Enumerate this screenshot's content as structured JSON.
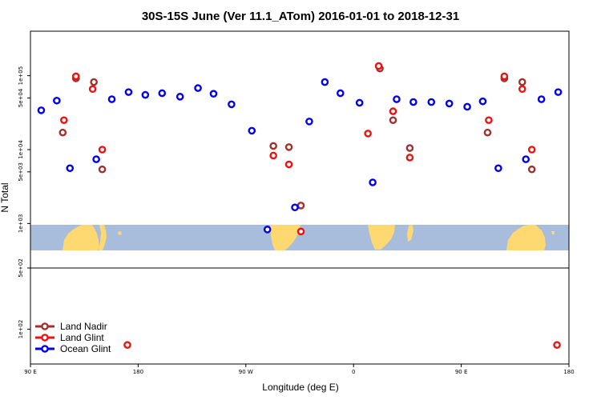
{
  "chart_data": {
    "type": "scatter",
    "title": "30S-15S June (Ver 11.1_ATom)   2016-01-01 to 2018-12-31",
    "xlabel": "Longitude (deg E)",
    "ylabel": "N Total",
    "xlim": [
      90,
      540
    ],
    "xticks": [
      {
        "v": 90,
        "label": "90 E"
      },
      {
        "v": 180,
        "label": "180"
      },
      {
        "v": 270,
        "label": "90 W"
      },
      {
        "v": 360,
        "label": "0"
      },
      {
        "v": 450,
        "label": "90 E"
      },
      {
        "v": 540,
        "label": "180"
      }
    ],
    "upper_panel": {
      "scale": "log",
      "ylim": [
        250,
        400000
      ],
      "yticks": [
        {
          "v": 1000,
          "label": "1e+03"
        },
        {
          "v": 5000,
          "label": "5e+03"
        },
        {
          "v": 10000,
          "label": "1e+04"
        },
        {
          "v": 50000,
          "label": "5e+04"
        },
        {
          "v": 100000,
          "label": "1e+05"
        }
      ]
    },
    "lower_panel": {
      "scale": "log",
      "ylim": [
        40,
        500
      ],
      "yticks": [
        {
          "v": 500,
          "label": "5e+02"
        },
        {
          "v": 100,
          "label": "1e+02"
        }
      ]
    },
    "legend": {
      "position": "bottom-left",
      "entries": [
        {
          "name": "Land Nadir",
          "color": "#a0302e"
        },
        {
          "name": "Land Glint",
          "color": "#ee1111"
        },
        {
          "name": "Ocean Glint",
          "color": "#0000ee"
        }
      ]
    },
    "map_colors": {
      "ocean": "#a8bcdc",
      "land": "#fed870"
    },
    "map_latitude_band": [
      "30S",
      "15S"
    ],
    "series": [
      {
        "name": "Land Nadir",
        "color": "#a0302e",
        "points": [
          {
            "x": 117,
            "y": 17000,
            "panel": "upper"
          },
          {
            "x": 128,
            "y": 92000,
            "panel": "upper"
          },
          {
            "x": 143,
            "y": 82000,
            "panel": "upper"
          },
          {
            "x": 150,
            "y": 5400,
            "panel": "upper"
          },
          {
            "x": 293,
            "y": 11200,
            "panel": "upper"
          },
          {
            "x": 306,
            "y": 10800,
            "panel": "upper"
          },
          {
            "x": 316,
            "y": 1750,
            "panel": "upper"
          },
          {
            "x": 382,
            "y": 125000,
            "panel": "upper"
          },
          {
            "x": 393,
            "y": 25000,
            "panel": "upper"
          },
          {
            "x": 407,
            "y": 10500,
            "panel": "upper"
          },
          {
            "x": 472,
            "y": 17000,
            "panel": "upper"
          },
          {
            "x": 486,
            "y": 92000,
            "panel": "upper"
          },
          {
            "x": 501,
            "y": 82000,
            "panel": "upper"
          },
          {
            "x": 509,
            "y": 5400,
            "panel": "upper"
          }
        ]
      },
      {
        "name": "Land Glint",
        "color": "#ee1111",
        "points": [
          {
            "x": 118,
            "y": 25000,
            "panel": "upper"
          },
          {
            "x": 128,
            "y": 98000,
            "panel": "upper"
          },
          {
            "x": 142,
            "y": 66000,
            "panel": "upper"
          },
          {
            "x": 150,
            "y": 10000,
            "panel": "upper"
          },
          {
            "x": 171,
            "y": 66,
            "panel": "lower"
          },
          {
            "x": 293,
            "y": 8300,
            "panel": "upper"
          },
          {
            "x": 306,
            "y": 6300,
            "panel": "upper"
          },
          {
            "x": 316,
            "y": 780,
            "panel": "upper"
          },
          {
            "x": 372,
            "y": 16500,
            "panel": "upper"
          },
          {
            "x": 381,
            "y": 135000,
            "panel": "upper"
          },
          {
            "x": 393,
            "y": 33000,
            "panel": "upper"
          },
          {
            "x": 407,
            "y": 7800,
            "panel": "upper"
          },
          {
            "x": 473,
            "y": 25000,
            "panel": "upper"
          },
          {
            "x": 486,
            "y": 98000,
            "panel": "upper"
          },
          {
            "x": 501,
            "y": 66000,
            "panel": "upper"
          },
          {
            "x": 509,
            "y": 10000,
            "panel": "upper"
          },
          {
            "x": 530,
            "y": 66,
            "panel": "lower"
          }
        ]
      },
      {
        "name": "Ocean Glint",
        "color": "#0000ee",
        "points": [
          {
            "x": 99,
            "y": 34000,
            "panel": "upper"
          },
          {
            "x": 112,
            "y": 46000,
            "panel": "upper"
          },
          {
            "x": 123,
            "y": 5600,
            "panel": "upper"
          },
          {
            "x": 145,
            "y": 7400,
            "panel": "upper"
          },
          {
            "x": 158,
            "y": 48000,
            "panel": "upper"
          },
          {
            "x": 172,
            "y": 60000,
            "panel": "upper"
          },
          {
            "x": 186,
            "y": 55000,
            "panel": "upper"
          },
          {
            "x": 200,
            "y": 58000,
            "panel": "upper"
          },
          {
            "x": 215,
            "y": 52000,
            "panel": "upper"
          },
          {
            "x": 230,
            "y": 68000,
            "panel": "upper"
          },
          {
            "x": 243,
            "y": 57000,
            "panel": "upper"
          },
          {
            "x": 258,
            "y": 41000,
            "panel": "upper"
          },
          {
            "x": 275,
            "y": 18000,
            "panel": "upper"
          },
          {
            "x": 288,
            "y": 830,
            "panel": "upper"
          },
          {
            "x": 311,
            "y": 1650,
            "panel": "upper"
          },
          {
            "x": 323,
            "y": 24000,
            "panel": "upper"
          },
          {
            "x": 336,
            "y": 82000,
            "panel": "upper"
          },
          {
            "x": 349,
            "y": 58000,
            "panel": "upper"
          },
          {
            "x": 365,
            "y": 43000,
            "panel": "upper"
          },
          {
            "x": 376,
            "y": 3600,
            "panel": "upper"
          },
          {
            "x": 396,
            "y": 48000,
            "panel": "upper"
          },
          {
            "x": 410,
            "y": 44000,
            "panel": "upper"
          },
          {
            "x": 425,
            "y": 44000,
            "panel": "upper"
          },
          {
            "x": 440,
            "y": 42000,
            "panel": "upper"
          },
          {
            "x": 455,
            "y": 38000,
            "panel": "upper"
          },
          {
            "x": 468,
            "y": 45000,
            "panel": "upper"
          },
          {
            "x": 481,
            "y": 5600,
            "panel": "upper"
          },
          {
            "x": 504,
            "y": 7400,
            "panel": "upper"
          },
          {
            "x": 517,
            "y": 48000,
            "panel": "upper"
          },
          {
            "x": 531,
            "y": 60000,
            "panel": "upper"
          }
        ]
      }
    ]
  }
}
